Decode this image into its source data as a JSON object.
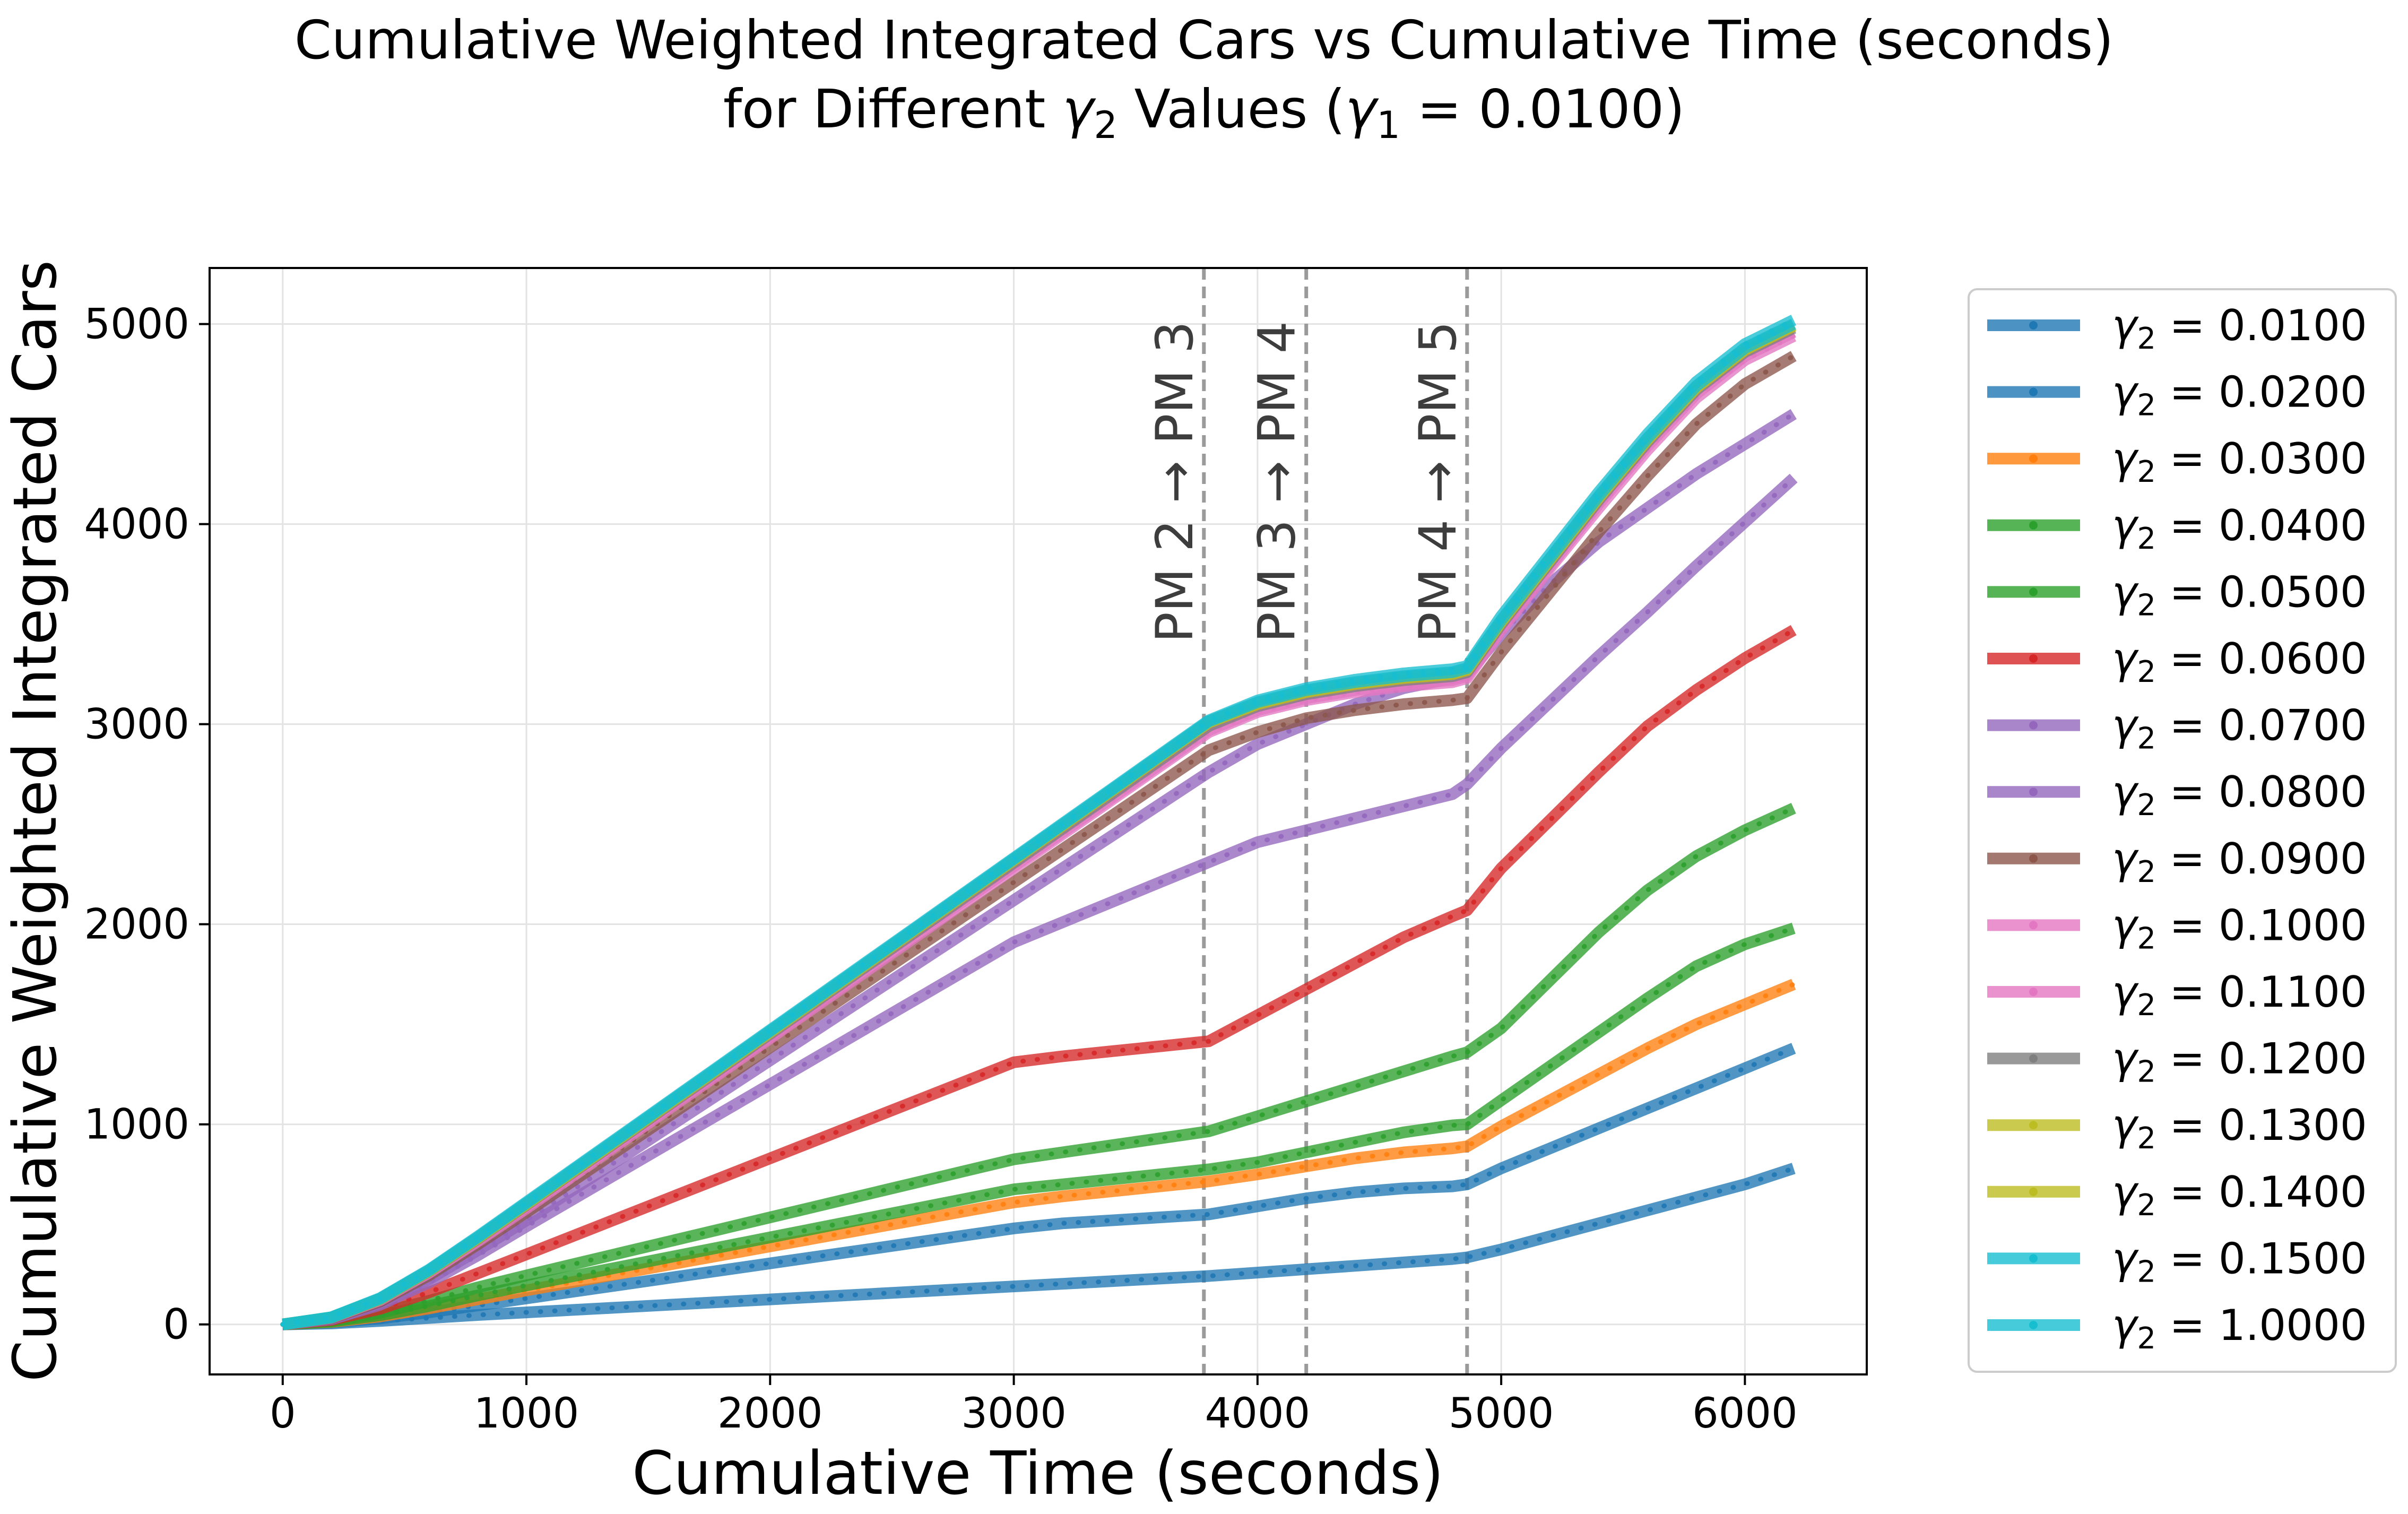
{
  "chart_data": {
    "type": "line",
    "title_line1": "Cumulative Weighted Integrated Cars vs Cumulative Time (seconds)",
    "title_line2_prefix": "for Different ",
    "title_line2_mid": " Values (",
    "title_line2_suffix": " = 0.0100)",
    "gamma_symbol": "γ",
    "sub_1": "1",
    "sub_2": "2",
    "xlabel": "Cumulative Time (seconds)",
    "ylabel": "Cumulative Weighted Integrated Cars",
    "xlim": [
      -300,
      6500
    ],
    "ylim": [
      -250,
      5280
    ],
    "xticks": [
      0,
      1000,
      2000,
      3000,
      4000,
      5000,
      6000
    ],
    "yticks": [
      0,
      1000,
      2000,
      3000,
      4000,
      5000
    ],
    "xtick_labels": [
      "0",
      "1000",
      "2000",
      "3000",
      "4000",
      "5000",
      "6000"
    ],
    "ytick_labels": [
      "0",
      "1000",
      "2000",
      "3000",
      "4000",
      "5000"
    ],
    "grid": true,
    "legend_position": "outside-right",
    "x": [
      0,
      200,
      400,
      600,
      800,
      1000,
      1200,
      1400,
      1600,
      1800,
      2000,
      2200,
      2400,
      2600,
      2800,
      3000,
      3200,
      3400,
      3600,
      3800,
      4000,
      4200,
      4400,
      4600,
      4800,
      4860,
      5000,
      5200,
      5400,
      5600,
      5800,
      6000,
      6200
    ],
    "transitions": [
      {
        "x": 3780,
        "label": "PM 2 → PM 3"
      },
      {
        "x": 4200,
        "label": "PM 3 → PM 4"
      },
      {
        "x": 4860,
        "label": "PM 4 → PM 5"
      }
    ],
    "series": [
      {
        "name_value": " = 0.0100",
        "color": "#1f77b4",
        "values": [
          0,
          5,
          17,
          32,
          47,
          60,
          73,
          86,
          99,
          112,
          125,
          138,
          151,
          164,
          177,
          190,
          203,
          216,
          229,
          242,
          259,
          276,
          293,
          310,
          327,
          335,
          375,
          440,
          505,
          570,
          635,
          700,
          780
        ]
      },
      {
        "name_value": " = 0.0200",
        "color": "#1f77b4",
        "values": [
          0,
          9,
          30,
          60,
          95,
          130,
          165,
          200,
          235,
          270,
          305,
          340,
          375,
          410,
          445,
          480,
          505,
          520,
          535,
          550,
          590,
          630,
          660,
          680,
          690,
          700,
          780,
          880,
          980,
          1080,
          1180,
          1280,
          1380
        ]
      },
      {
        "name_value": " = 0.0300",
        "color": "#ff7f0e",
        "values": [
          0,
          12,
          40,
          80,
          125,
          170,
          214,
          258,
          302,
          346,
          390,
          434,
          478,
          522,
          566,
          610,
          640,
          665,
          690,
          715,
          750,
          790,
          830,
          860,
          880,
          890,
          990,
          1120,
          1250,
          1380,
          1500,
          1600,
          1700
        ]
      },
      {
        "name_value": " = 0.0400",
        "color": "#2ca02c",
        "values": [
          0,
          14,
          46,
          92,
          145,
          195,
          243,
          291,
          339,
          387,
          435,
          483,
          531,
          579,
          627,
          675,
          700,
          725,
          750,
          775,
          810,
          860,
          910,
          960,
          995,
          1000,
          1120,
          1290,
          1460,
          1630,
          1790,
          1900,
          1980
        ]
      },
      {
        "name_value": " = 0.0500",
        "color": "#2ca02c",
        "values": [
          0,
          17,
          58,
          118,
          185,
          245,
          303,
          361,
          419,
          477,
          535,
          593,
          651,
          709,
          767,
          825,
          860,
          895,
          930,
          965,
          1040,
          1115,
          1190,
          1265,
          1340,
          1360,
          1480,
          1720,
          1960,
          2170,
          2340,
          2470,
          2580
        ]
      },
      {
        "name_value": " = 0.0600",
        "color": "#d62728",
        "values": [
          0,
          22,
          78,
          160,
          255,
          350,
          446,
          542,
          638,
          734,
          830,
          926,
          1022,
          1118,
          1214,
          1310,
          1340,
          1365,
          1390,
          1415,
          1545,
          1675,
          1805,
          1935,
          2040,
          2070,
          2280,
          2520,
          2760,
          2990,
          3170,
          3330,
          3470
        ]
      },
      {
        "name_value": " = 0.0700",
        "color": "#9467bd",
        "values": [
          0,
          28,
          105,
          225,
          370,
          520,
          680,
          840,
          1000,
          1160,
          1320,
          1480,
          1640,
          1800,
          1960,
          2120,
          2280,
          2440,
          2600,
          2760,
          2900,
          3000,
          3100,
          3180,
          3230,
          3250,
          3450,
          3700,
          3910,
          4080,
          4250,
          4400,
          4550
        ]
      },
      {
        "name_value": " = 0.0800",
        "color": "#9467bd",
        "values": [
          0,
          26,
          98,
          210,
          345,
          490,
          632,
          774,
          916,
          1058,
          1200,
          1342,
          1484,
          1626,
          1768,
          1910,
          2010,
          2110,
          2210,
          2310,
          2410,
          2470,
          2530,
          2590,
          2650,
          2700,
          2880,
          3110,
          3340,
          3560,
          3790,
          4010,
          4230
        ]
      },
      {
        "name_value": " = 0.0900",
        "color": "#8c564b",
        "values": [
          0,
          30,
          115,
          245,
          400,
          560,
          725,
          890,
          1055,
          1220,
          1385,
          1550,
          1715,
          1880,
          2045,
          2210,
          2375,
          2540,
          2705,
          2870,
          2960,
          3030,
          3070,
          3100,
          3120,
          3130,
          3360,
          3660,
          3960,
          4240,
          4500,
          4700,
          4840
        ]
      },
      {
        "name_value": " = 0.1000",
        "color": "#e377c2",
        "values": [
          0,
          33,
          122,
          258,
          415,
          580,
          750,
          920,
          1090,
          1260,
          1430,
          1600,
          1770,
          1940,
          2110,
          2280,
          2450,
          2620,
          2790,
          2960,
          3060,
          3120,
          3160,
          3190,
          3210,
          3230,
          3470,
          3780,
          4080,
          4370,
          4630,
          4820,
          4940
        ]
      },
      {
        "name_value": " = 0.1100",
        "color": "#e377c2",
        "values": [
          0,
          34,
          124,
          262,
          422,
          590,
          760,
          930,
          1100,
          1270,
          1440,
          1610,
          1780,
          1950,
          2120,
          2290,
          2460,
          2630,
          2800,
          2970,
          3070,
          3130,
          3170,
          3200,
          3220,
          3240,
          3480,
          3790,
          4100,
          4390,
          4650,
          4840,
          4960
        ]
      },
      {
        "name_value": " = 0.1200",
        "color": "#7f7f7f",
        "values": [
          0,
          34,
          126,
          265,
          427,
          597,
          768,
          939,
          1110,
          1281,
          1452,
          1623,
          1794,
          1965,
          2136,
          2307,
          2478,
          2649,
          2820,
          2991,
          3090,
          3150,
          3190,
          3220,
          3240,
          3260,
          3500,
          3810,
          4120,
          4410,
          4670,
          4860,
          4980
        ]
      },
      {
        "name_value": " = 0.1300",
        "color": "#bcbd22",
        "values": [
          0,
          35,
          127,
          267,
          430,
          600,
          772,
          944,
          1116,
          1288,
          1460,
          1632,
          1804,
          1976,
          2148,
          2320,
          2492,
          2664,
          2836,
          3008,
          3100,
          3160,
          3200,
          3230,
          3250,
          3270,
          3510,
          3820,
          4130,
          4420,
          4680,
          4870,
          4990
        ]
      },
      {
        "name_value": " = 0.1400",
        "color": "#bcbd22",
        "values": [
          0,
          35,
          128,
          268,
          432,
          603,
          775,
          947,
          1119,
          1291,
          1463,
          1635,
          1807,
          1979,
          2151,
          2323,
          2495,
          2667,
          2839,
          3011,
          3105,
          3165,
          3205,
          3235,
          3255,
          3275,
          3515,
          3825,
          4135,
          4425,
          4685,
          4875,
          4995
        ]
      },
      {
        "name_value": " = 0.1500",
        "color": "#17becf",
        "values": [
          0,
          35,
          129,
          270,
          435,
          606,
          778,
          950,
          1122,
          1294,
          1466,
          1638,
          1810,
          1982,
          2154,
          2326,
          2498,
          2670,
          2842,
          3014,
          3110,
          3170,
          3210,
          3240,
          3260,
          3280,
          3520,
          3830,
          4140,
          4430,
          4690,
          4880,
          5000
        ]
      },
      {
        "name_value": " = 1.0000",
        "color": "#17becf",
        "values": [
          0,
          36,
          131,
          273,
          439,
          611,
          783,
          955,
          1127,
          1299,
          1471,
          1643,
          1815,
          1987,
          2159,
          2331,
          2503,
          2675,
          2847,
          3019,
          3118,
          3180,
          3222,
          3254,
          3275,
          3290,
          3540,
          3850,
          4160,
          4450,
          4710,
          4900,
          5020
        ]
      }
    ]
  }
}
